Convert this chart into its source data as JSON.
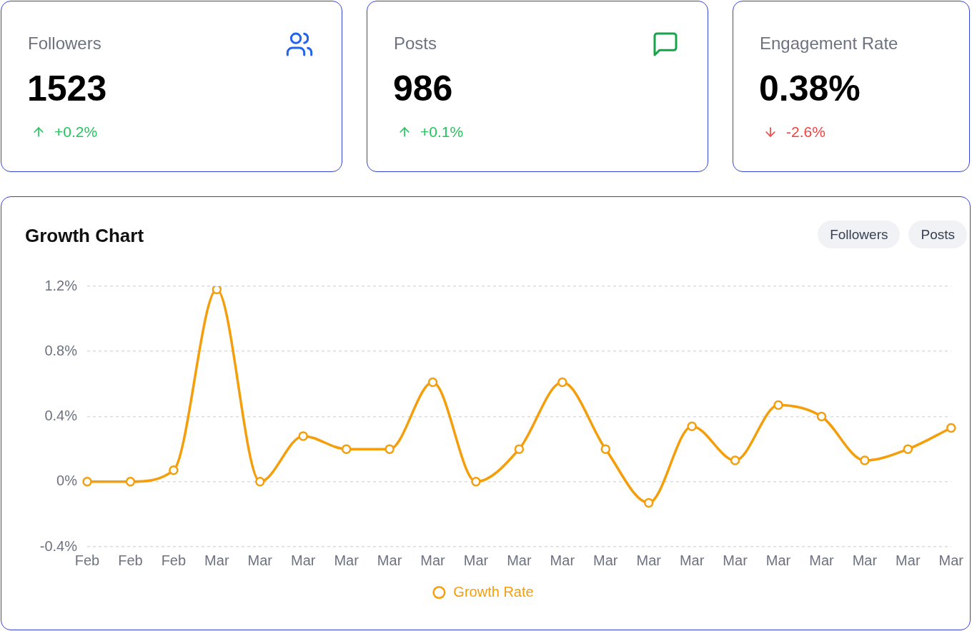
{
  "chart_data": [
    {
      "type": "other",
      "title": "Followers",
      "annotations": [
        "1523"
      ],
      "values": [
        0.2
      ],
      "value_labels": [
        "+0.2%"
      ]
    },
    {
      "type": "other",
      "title": "Posts",
      "annotations": [
        "986"
      ],
      "values": [
        0.1
      ],
      "value_labels": [
        "+0.1%"
      ]
    },
    {
      "type": "other",
      "title": "Engagement Rate",
      "annotations": [
        "0.38%"
      ],
      "values": [
        -2.6
      ],
      "value_labels": [
        "-2.6%"
      ]
    },
    {
      "type": "line",
      "title": "Growth Chart",
      "annotations": [
        "Followers",
        "Posts"
      ],
      "categories": [
        "Feb",
        "Feb",
        "Feb",
        "Mar",
        "Mar",
        "Mar",
        "Mar",
        "Mar",
        "Mar",
        "Mar",
        "Mar",
        "Mar",
        "Mar",
        "Mar",
        "Mar",
        "Mar",
        "Mar",
        "Mar",
        "Mar",
        "Mar",
        "Mar"
      ],
      "series": [
        {
          "name": "Growth Rate",
          "color": "#f59e0b",
          "values": [
            0,
            0,
            0.07,
            1.18,
            0,
            0.28,
            0.2,
            0.2,
            0.61,
            0,
            0.2,
            0.61,
            0.2,
            -0.13,
            0.34,
            0.13,
            0.47,
            0.4,
            0.13,
            0.2,
            0.33
          ]
        }
      ],
      "ylim": [
        -0.4,
        1.2
      ],
      "yticks": [
        {
          "value": -0.4,
          "label": "-0.4%"
        },
        {
          "value": 0,
          "label": "0%"
        },
        {
          "value": 0.4,
          "label": "0.4%"
        },
        {
          "value": 0.8,
          "label": "0.8%"
        },
        {
          "value": 1.2,
          "label": "1.2%"
        }
      ],
      "grid": "y",
      "legend": "bottom",
      "marker": "circle",
      "line_style": "solid"
    }
  ]
}
